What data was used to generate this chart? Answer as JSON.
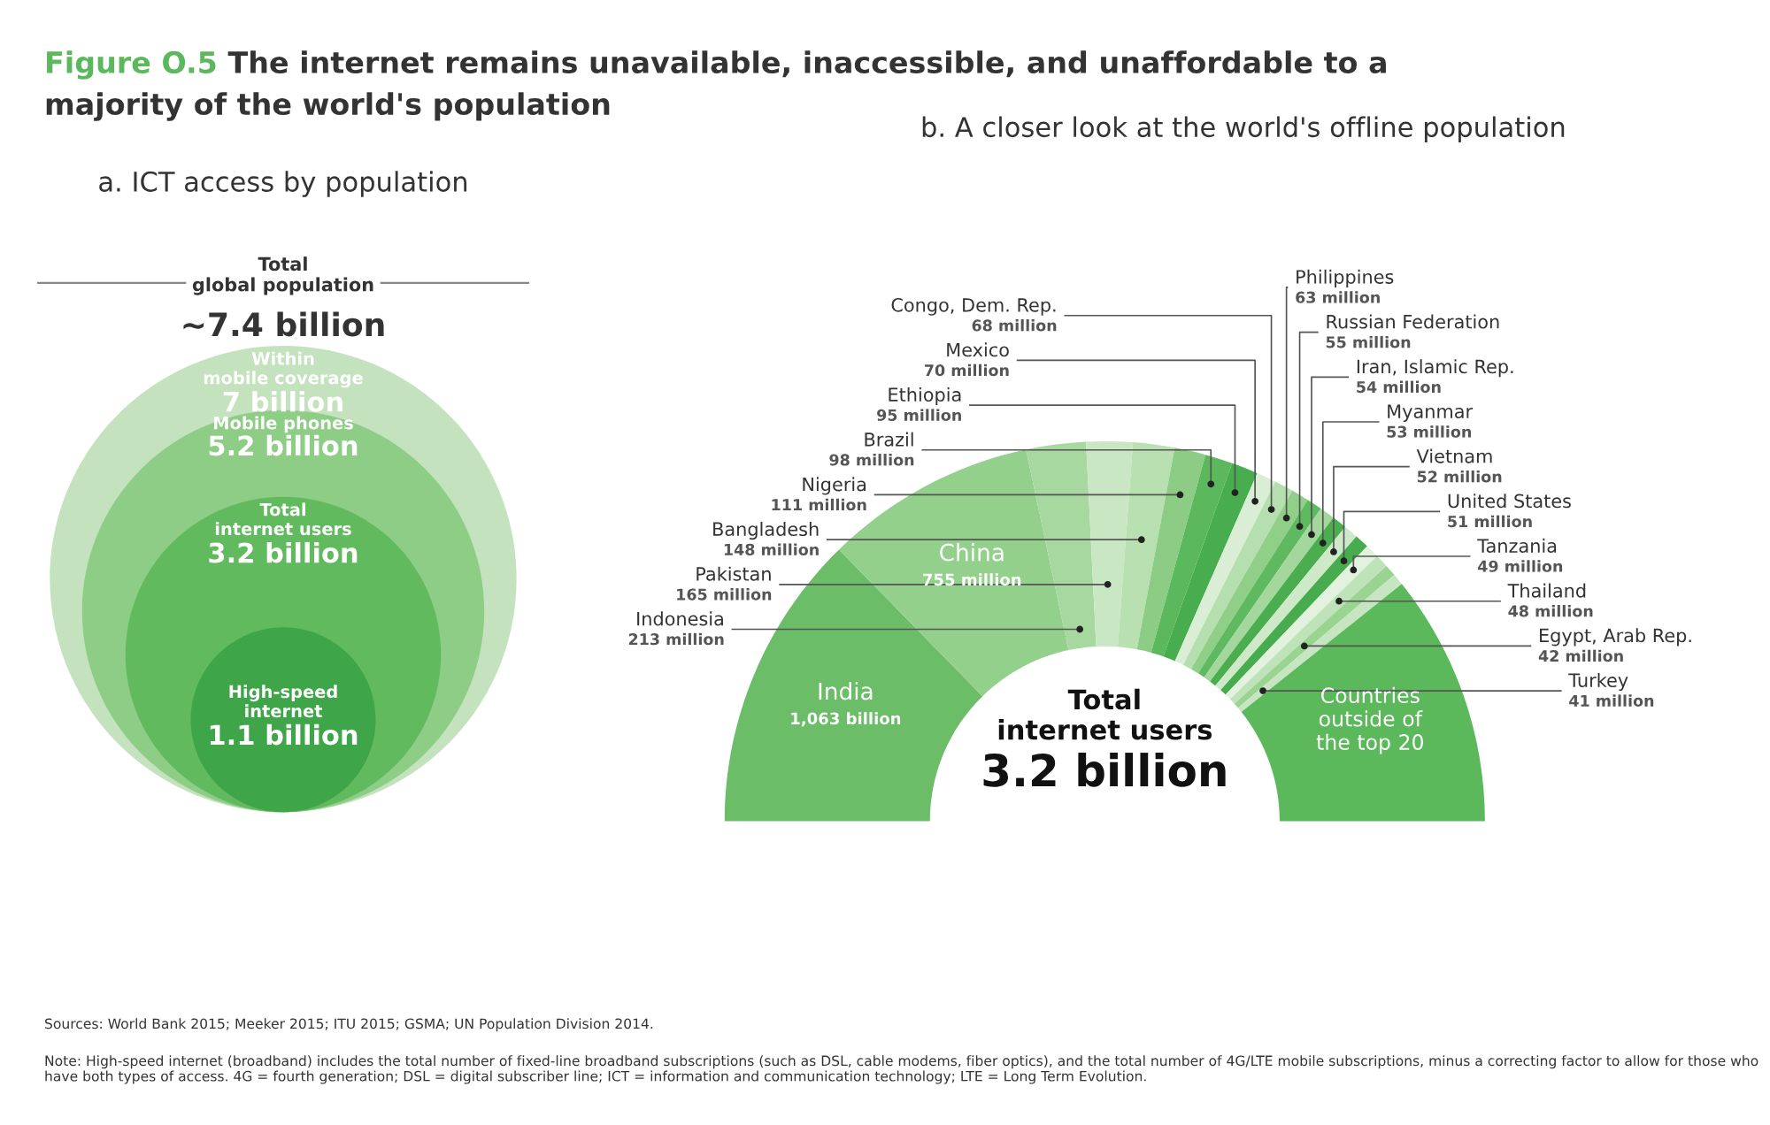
{
  "chart_data": [
    {
      "type": "other",
      "title": "The internet remains unavailable, inaccessible, and unaffordable to a\nmajority of the world's population",
      "annotations": [
        "Figure O.5",
        "Sources: World Bank 2015; Meeker 2015; ITU 2015; GSMA; UN Population Division 2014.",
        "Note: High-speed internet (broadband) includes the total number of fixed-line broadband subscriptions (such as DSL, cable modems, fiber optics), and the total number of 4G/LTE mobile subscriptions, minus a correcting factor to allow for those who have both types of access. 4G = fourth generation; DSL = digital subscriber line; ICT = information and communication technology; LTE = Long Term Evolution."
      ]
    },
    {
      "type": "other",
      "title": "a. ICT access by population",
      "categories": [
        "Within\nmobile coverage",
        "Mobile phones",
        "Total\ninternet users",
        "High-speed\ninternet"
      ],
      "values": [
        7,
        5.2,
        3.2,
        1.1
      ],
      "value_labels": [
        "7 billion",
        "5.2 billion",
        "3.2 billion",
        "1.1 billion"
      ],
      "colors": [
        "#c4e2bd",
        "#8ecd86",
        "#62ba5f",
        "#3ea548"
      ],
      "annotations": [
        "Total\nglobal population",
        "~7.4 billion"
      ]
    },
    {
      "type": "donut",
      "title": "b. A closer look at the world's offline population",
      "categories": [
        "India",
        "China",
        "Indonesia",
        "Pakistan",
        "Bangladesh",
        "Nigeria",
        "Brazil",
        "Ethiopia",
        "Mexico",
        "Congo, Dem. Rep.",
        "Philippines",
        "Russian Federation",
        "Iran, Islamic Rep.",
        "Myanmar",
        "Vietnam",
        "United States",
        "Tanzania",
        "Thailand",
        "Egypt, Arab Rep.",
        "Turkey",
        "Countries\noutside of\nthe top 20"
      ],
      "values": [
        1063,
        755,
        213,
        165,
        148,
        111,
        98,
        95,
        70,
        68,
        63,
        55,
        54,
        53,
        52,
        51,
        49,
        48,
        42,
        41,
        900
      ],
      "value_labels": [
        "1,063 billion",
        "755 million",
        "213 million",
        "165 million",
        "148 million",
        "111 million",
        "98 million",
        "95 million",
        "70 million",
        "68 million",
        "63 million",
        "55 million",
        "54 million",
        "53 million",
        "52 million",
        "51 million",
        "49 million",
        "48 million",
        "42 million",
        "41 million",
        null
      ],
      "colors": [
        "#6bbd68",
        "#93d08b",
        "#a6d89f",
        "#c9e7c3",
        "#b8e0b1",
        "#8ccc85",
        "#5cb85c",
        "#48ad4e",
        "#d9eed5",
        "#b5dfae",
        "#8fcf88",
        "#5fb960",
        "#a3d79b",
        "#4aae4f",
        "#cde9c8",
        "#47ac4d",
        "#e2f2df",
        "#bfe3b8",
        "#9ad491",
        "#c6e5c0",
        "#5bb85b"
      ],
      "annotations": [
        "Total\ninternet users",
        "3.2 billion"
      ]
    }
  ]
}
